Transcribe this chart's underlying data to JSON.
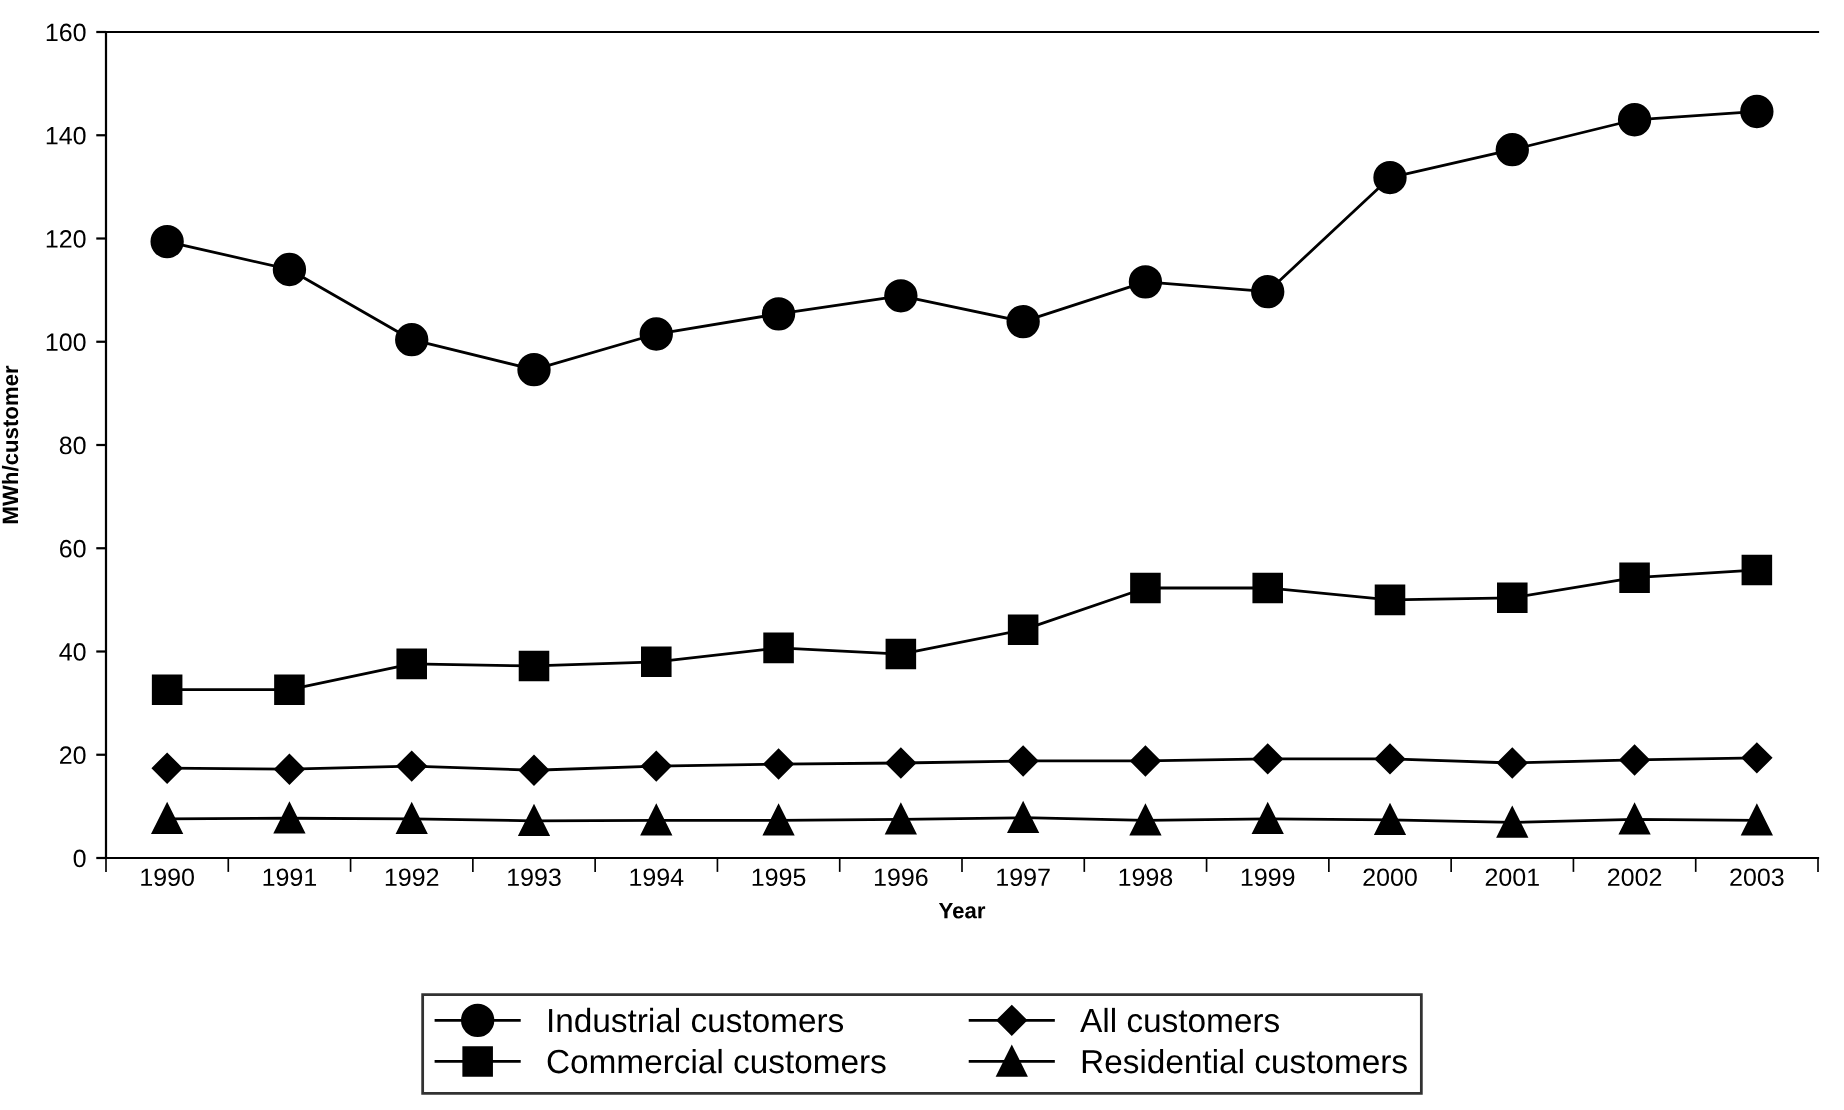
{
  "chart_data": {
    "type": "line",
    "xlabel": "Year",
    "ylabel": "MWh/customer",
    "categories": [
      "1990",
      "1991",
      "1992",
      "1993",
      "1994",
      "1995",
      "1996",
      "1997",
      "1998",
      "1999",
      "2000",
      "2001",
      "2002",
      "2003"
    ],
    "series": [
      {
        "name": "Industrial customers",
        "color": "#000000",
        "marker": "circle",
        "values": [
          119.4,
          114,
          100.4,
          94.6,
          101.5,
          105.4,
          108.9,
          103.9,
          111.6,
          109.7,
          131.8,
          137.2,
          143,
          144.6
        ]
      },
      {
        "name": "Commercial customers",
        "color": "#000000",
        "marker": "square",
        "values": [
          32.6,
          32.6,
          37.6,
          37.2,
          38,
          40.7,
          39.5,
          44.2,
          52.3,
          52.3,
          50,
          50.4,
          54.3,
          55.8
        ]
      },
      {
        "name": "All customers",
        "color": "#000000",
        "marker": "diamond",
        "values": [
          17.4,
          17.2,
          17.8,
          17,
          17.8,
          18.2,
          18.4,
          18.8,
          18.8,
          19.2,
          19.2,
          18.4,
          19,
          19.4
        ]
      },
      {
        "name": "Residential customers",
        "color": "#000000",
        "marker": "triangle",
        "values": [
          7.6,
          7.7,
          7.6,
          7.2,
          7.3,
          7.3,
          7.5,
          7.8,
          7.3,
          7.6,
          7.4,
          6.9,
          7.5,
          7.3
        ]
      }
    ],
    "ylim": [
      0,
      160
    ],
    "yticks": [
      0,
      20,
      40,
      60,
      80,
      100,
      120,
      140,
      160
    ],
    "grid": false,
    "legend": "bottom",
    "line_style": "solid"
  }
}
